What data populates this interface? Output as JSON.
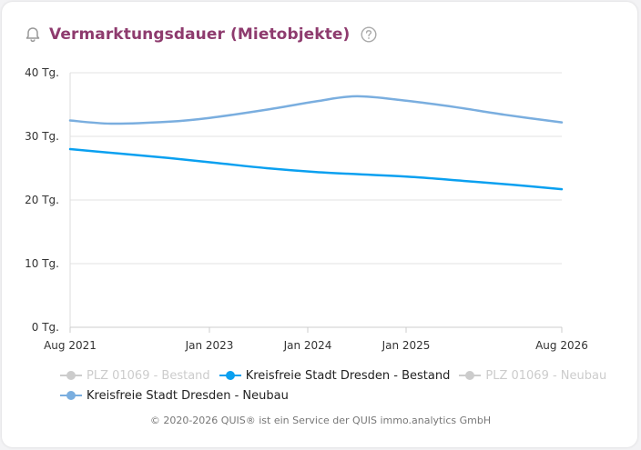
{
  "header": {
    "title": "Vermarktungsdauer (Mietobjekte)",
    "icon": "bell-icon",
    "help_icon": "question-circle-icon",
    "title_color": "#8e3b6e"
  },
  "chart_data": {
    "type": "line",
    "title": "Vermarktungsdauer (Mietobjekte)",
    "ylim": [
      0,
      40
    ],
    "y_ticks": [
      {
        "value": 0,
        "label": "0 Tg."
      },
      {
        "value": 10,
        "label": "10 Tg."
      },
      {
        "value": 20,
        "label": "20 Tg."
      },
      {
        "value": 30,
        "label": "30 Tg."
      },
      {
        "value": 40,
        "label": "40 Tg."
      }
    ],
    "xlim": [
      "2021-08",
      "2026-08"
    ],
    "x_ticks": [
      {
        "value": "2021-08",
        "label": "Aug 2021"
      },
      {
        "value": "2023-01",
        "label": "Jan 2023"
      },
      {
        "value": "2024-01",
        "label": "Jan 2024"
      },
      {
        "value": "2025-01",
        "label": "Jan 2025"
      },
      {
        "value": "2026-08",
        "label": "Aug 2026"
      }
    ],
    "grid": true,
    "legend_position": "bottom",
    "series": [
      {
        "name": "PLZ 01069 - Bestand",
        "visible": false,
        "color": "#cccccc",
        "x": [],
        "values": []
      },
      {
        "name": "Kreisfreie Stadt Dresden - Bestand",
        "visible": true,
        "color": "#0aa0f0",
        "x": [
          "2021-08",
          "2022-02",
          "2022-08",
          "2023-02",
          "2023-08",
          "2024-02",
          "2024-08",
          "2025-02",
          "2025-08",
          "2026-02",
          "2026-08"
        ],
        "values": [
          28.0,
          27.3,
          26.6,
          25.8,
          25.0,
          24.4,
          24.0,
          23.6,
          23.0,
          22.4,
          21.7
        ]
      },
      {
        "name": "PLZ 01069 - Neubau",
        "visible": false,
        "color": "#cccccc",
        "x": [],
        "values": []
      },
      {
        "name": "Kreisfreie Stadt Dresden - Neubau",
        "visible": true,
        "color": "#7aaedf",
        "x": [
          "2021-08",
          "2022-01",
          "2022-08",
          "2023-01",
          "2023-08",
          "2024-02",
          "2024-07",
          "2025-01",
          "2025-07",
          "2026-01",
          "2026-08"
        ],
        "values": [
          32.5,
          32.0,
          32.3,
          32.9,
          34.2,
          35.5,
          36.3,
          35.6,
          34.6,
          33.4,
          32.2
        ]
      }
    ]
  },
  "footer": {
    "text": "© 2020-2026 QUIS® ist ein Service der QUIS immo.analytics GmbH"
  }
}
